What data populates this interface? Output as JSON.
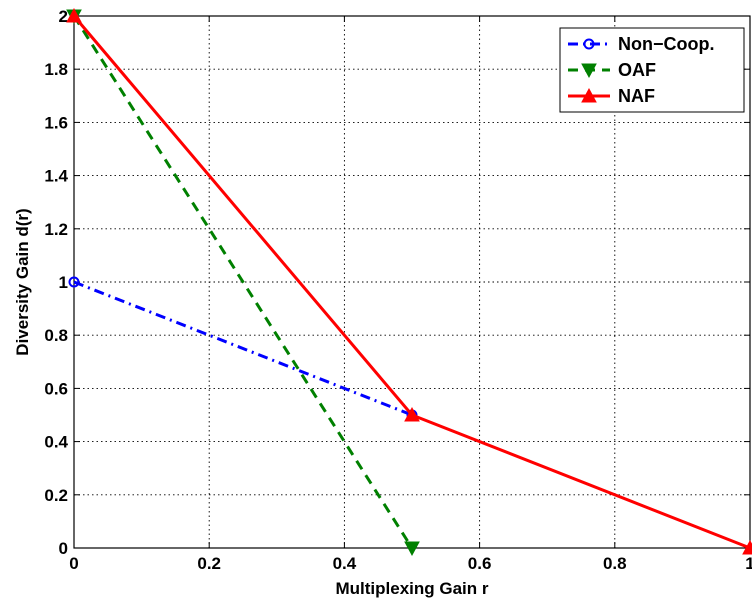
{
  "chart_data": {
    "type": "line",
    "xlabel": "Multiplexing Gain r",
    "ylabel": "Diversity Gain d(r)",
    "xlim": [
      0,
      1
    ],
    "ylim": [
      0,
      2
    ],
    "x_ticks": [
      "0",
      "0.2",
      "0.4",
      "0.6",
      "0.8",
      "1"
    ],
    "y_ticks": [
      "0",
      "0.2",
      "0.4",
      "0.6",
      "0.8",
      "1",
      "1.2",
      "1.4",
      "1.6",
      "1.8",
      "2"
    ],
    "grid": true,
    "legend_position": "top-right",
    "series": [
      {
        "name": "Non−Coop.",
        "x": [
          0,
          0.5
        ],
        "y": [
          1,
          0.5
        ],
        "color": "#0000ff",
        "line_style": "dash-dot",
        "marker": "circle"
      },
      {
        "name": "OAF",
        "x": [
          0,
          0.5
        ],
        "y": [
          2,
          0
        ],
        "color": "#008000",
        "line_style": "dashed",
        "marker": "triangle-down"
      },
      {
        "name": "NAF",
        "x": [
          0,
          0.5,
          1
        ],
        "y": [
          2,
          0.5,
          0
        ],
        "color": "#ff0000",
        "line_style": "solid",
        "marker": "triangle-up"
      }
    ]
  }
}
